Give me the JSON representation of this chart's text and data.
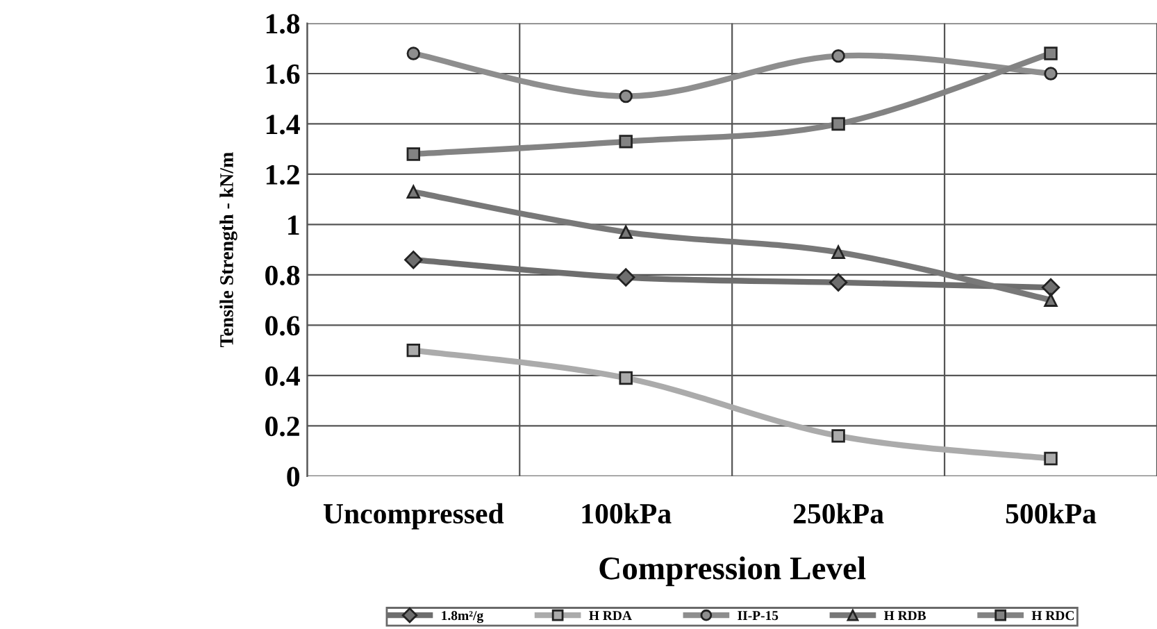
{
  "chart_data": {
    "type": "line",
    "xlabel": "Compression Level",
    "ylabel": "Tensile Strength - kN/m",
    "categories": [
      "Uncompressed",
      "100kPa",
      "250kPa",
      "500kPa"
    ],
    "series": [
      {
        "name": "1.8m²/g",
        "color": "#6e6e6e",
        "marker": "diamond",
        "values": [
          0.86,
          0.79,
          0.77,
          0.75
        ]
      },
      {
        "name": "H RDA",
        "color": "#ababab",
        "marker": "square",
        "values": [
          0.5,
          0.39,
          0.16,
          0.07
        ]
      },
      {
        "name": "II-P-15",
        "color": "#8e8e8e",
        "marker": "circle",
        "values": [
          1.68,
          1.51,
          1.67,
          1.6
        ]
      },
      {
        "name": "H RDB",
        "color": "#787878",
        "marker": "triangle",
        "values": [
          1.13,
          0.97,
          0.89,
          0.7
        ]
      },
      {
        "name": "H RDC",
        "color": "#838383",
        "marker": "square",
        "values": [
          1.28,
          1.33,
          1.4,
          1.68
        ]
      }
    ],
    "ylim": [
      0,
      1.8
    ],
    "yticks": [
      0,
      0.2,
      0.4,
      0.6,
      0.8,
      1,
      1.2,
      1.4,
      1.6,
      1.8
    ],
    "grid": true,
    "legend": "bottom",
    "line_style": "solid"
  }
}
